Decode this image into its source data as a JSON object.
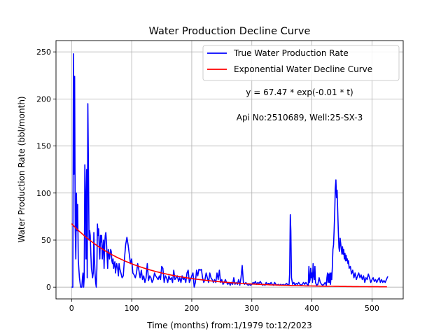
{
  "chart_data": {
    "type": "line",
    "title": "Water Production Decline Curve",
    "xlabel": "Time (months) from:1/1979 to:12/2023",
    "ylabel": "Water Production Rate (bbl/month)",
    "xlim": [
      -26,
      552
    ],
    "ylim": [
      -12.5,
      262
    ],
    "x_ticks": [
      0,
      100,
      200,
      300,
      400,
      500
    ],
    "y_ticks": [
      0,
      50,
      100,
      150,
      200,
      250
    ],
    "grid": true,
    "legend_position": "top-right",
    "annotations": [
      "y = 67.47 * exp(-0.01 * t)",
      "Api No:2510689, Well:25-SX-3"
    ],
    "series": [
      {
        "name": "True Water Production Rate",
        "color": "#0000ff",
        "points": [
          [
            0,
            0
          ],
          [
            2,
            0
          ],
          [
            3,
            248
          ],
          [
            4,
            120
          ],
          [
            5,
            224
          ],
          [
            6,
            60
          ],
          [
            7,
            30
          ],
          [
            8,
            100
          ],
          [
            9,
            60
          ],
          [
            10,
            88
          ],
          [
            11,
            30
          ],
          [
            12,
            20
          ],
          [
            13,
            10
          ],
          [
            14,
            5
          ],
          [
            15,
            0
          ],
          [
            17,
            0
          ],
          [
            18,
            10
          ],
          [
            19,
            15
          ],
          [
            20,
            0
          ],
          [
            21,
            10
          ],
          [
            22,
            130
          ],
          [
            23,
            100
          ],
          [
            24,
            30
          ],
          [
            25,
            125
          ],
          [
            26,
            10
          ],
          [
            27,
            195
          ],
          [
            28,
            130
          ],
          [
            29,
            50
          ],
          [
            30,
            60
          ],
          [
            31,
            55
          ],
          [
            32,
            35
          ],
          [
            33,
            20
          ],
          [
            34,
            15
          ],
          [
            35,
            10
          ],
          [
            36,
            15
          ],
          [
            37,
            58
          ],
          [
            38,
            30
          ],
          [
            39,
            15
          ],
          [
            40,
            5
          ],
          [
            41,
            0
          ],
          [
            42,
            20
          ],
          [
            43,
            67
          ],
          [
            44,
            55
          ],
          [
            45,
            62
          ],
          [
            46,
            40
          ],
          [
            47,
            30
          ],
          [
            48,
            55
          ],
          [
            49,
            48
          ],
          [
            50,
            55
          ],
          [
            51,
            30
          ],
          [
            52,
            40
          ],
          [
            53,
            50
          ],
          [
            54,
            20
          ],
          [
            55,
            45
          ],
          [
            56,
            55
          ],
          [
            57,
            58
          ],
          [
            58,
            48
          ],
          [
            59,
            35
          ],
          [
            60,
            20
          ],
          [
            61,
            40
          ],
          [
            62,
            37
          ],
          [
            63,
            30
          ],
          [
            64,
            35
          ],
          [
            65,
            40
          ],
          [
            66,
            38
          ],
          [
            67,
            28
          ],
          [
            68,
            25
          ],
          [
            69,
            30
          ],
          [
            70,
            20
          ],
          [
            71,
            24
          ],
          [
            72,
            27
          ],
          [
            73,
            15
          ],
          [
            74,
            20
          ],
          [
            75,
            25
          ],
          [
            76,
            22
          ],
          [
            77,
            18
          ],
          [
            78,
            12
          ],
          [
            79,
            25
          ],
          [
            80,
            20
          ],
          [
            82,
            15
          ],
          [
            84,
            10
          ],
          [
            86,
            12
          ],
          [
            88,
            30
          ],
          [
            90,
            45
          ],
          [
            92,
            53
          ],
          [
            94,
            45
          ],
          [
            96,
            35
          ],
          [
            98,
            25
          ],
          [
            100,
            30
          ],
          [
            102,
            15
          ],
          [
            104,
            13
          ],
          [
            106,
            10
          ],
          [
            108,
            15
          ],
          [
            110,
            25
          ],
          [
            112,
            18
          ],
          [
            114,
            10
          ],
          [
            116,
            18
          ],
          [
            118,
            8
          ],
          [
            120,
            12
          ],
          [
            122,
            5
          ],
          [
            124,
            10
          ],
          [
            126,
            25
          ],
          [
            128,
            7
          ],
          [
            130,
            12
          ],
          [
            132,
            10
          ],
          [
            134,
            5
          ],
          [
            136,
            8
          ],
          [
            138,
            15
          ],
          [
            140,
            12
          ],
          [
            142,
            10
          ],
          [
            144,
            8
          ],
          [
            146,
            12
          ],
          [
            148,
            8
          ],
          [
            150,
            22
          ],
          [
            152,
            20
          ],
          [
            154,
            5
          ],
          [
            156,
            12
          ],
          [
            158,
            10
          ],
          [
            160,
            5
          ],
          [
            162,
            12
          ],
          [
            164,
            8
          ],
          [
            166,
            10
          ],
          [
            168,
            5
          ],
          [
            170,
            18
          ],
          [
            172,
            8
          ],
          [
            174,
            10
          ],
          [
            176,
            12
          ],
          [
            178,
            6
          ],
          [
            180,
            10
          ],
          [
            182,
            5
          ],
          [
            184,
            12
          ],
          [
            186,
            8
          ],
          [
            188,
            10
          ],
          [
            190,
            5
          ],
          [
            192,
            15
          ],
          [
            194,
            18
          ],
          [
            196,
            5
          ],
          [
            198,
            8
          ],
          [
            200,
            12
          ],
          [
            202,
            15
          ],
          [
            204,
            0
          ],
          [
            206,
            5
          ],
          [
            208,
            18
          ],
          [
            210,
            12
          ],
          [
            212,
            19
          ],
          [
            214,
            18
          ],
          [
            216,
            19
          ],
          [
            218,
            10
          ],
          [
            220,
            5
          ],
          [
            222,
            8
          ],
          [
            224,
            15
          ],
          [
            226,
            10
          ],
          [
            228,
            5
          ],
          [
            230,
            15
          ],
          [
            232,
            10
          ],
          [
            234,
            8
          ],
          [
            236,
            5
          ],
          [
            238,
            8
          ],
          [
            240,
            5
          ],
          [
            242,
            15
          ],
          [
            244,
            8
          ],
          [
            246,
            18
          ],
          [
            248,
            5
          ],
          [
            250,
            8
          ],
          [
            252,
            3
          ],
          [
            254,
            5
          ],
          [
            256,
            8
          ],
          [
            258,
            5
          ],
          [
            260,
            3
          ],
          [
            262,
            5
          ],
          [
            264,
            2
          ],
          [
            266,
            5
          ],
          [
            268,
            3
          ],
          [
            270,
            10
          ],
          [
            272,
            3
          ],
          [
            274,
            5
          ],
          [
            276,
            3
          ],
          [
            278,
            8
          ],
          [
            280,
            2
          ],
          [
            282,
            10
          ],
          [
            284,
            23
          ],
          [
            286,
            5
          ],
          [
            288,
            3
          ],
          [
            290,
            5
          ],
          [
            292,
            3
          ],
          [
            294,
            2
          ],
          [
            296,
            3
          ],
          [
            298,
            2
          ],
          [
            300,
            3
          ],
          [
            302,
            5
          ],
          [
            304,
            4
          ],
          [
            306,
            6
          ],
          [
            308,
            3
          ],
          [
            310,
            5
          ],
          [
            312,
            4
          ],
          [
            314,
            6
          ],
          [
            316,
            4
          ],
          [
            318,
            2
          ],
          [
            320,
            3
          ],
          [
            322,
            2
          ],
          [
            324,
            5
          ],
          [
            326,
            3
          ],
          [
            328,
            4
          ],
          [
            330,
            3
          ],
          [
            332,
            5
          ],
          [
            334,
            3
          ],
          [
            336,
            2
          ],
          [
            338,
            5
          ],
          [
            340,
            3
          ],
          [
            342,
            2
          ],
          [
            344,
            3
          ],
          [
            346,
            2
          ],
          [
            348,
            3
          ],
          [
            350,
            2
          ],
          [
            352,
            3
          ],
          [
            354,
            2
          ],
          [
            356,
            3
          ],
          [
            358,
            4
          ],
          [
            360,
            2
          ],
          [
            362,
            3
          ],
          [
            363,
            15
          ],
          [
            364,
            77
          ],
          [
            365,
            60
          ],
          [
            366,
            10
          ],
          [
            368,
            3
          ],
          [
            370,
            5
          ],
          [
            372,
            2
          ],
          [
            374,
            4
          ],
          [
            376,
            3
          ],
          [
            378,
            5
          ],
          [
            380,
            3
          ],
          [
            382,
            2
          ],
          [
            384,
            3
          ],
          [
            386,
            5
          ],
          [
            388,
            3
          ],
          [
            390,
            5
          ],
          [
            392,
            3
          ],
          [
            394,
            2
          ],
          [
            395,
            22
          ],
          [
            396,
            5
          ],
          [
            397,
            8
          ],
          [
            398,
            20
          ],
          [
            399,
            10
          ],
          [
            400,
            15
          ],
          [
            401,
            5
          ],
          [
            402,
            25
          ],
          [
            403,
            12
          ],
          [
            404,
            8
          ],
          [
            405,
            22
          ],
          [
            406,
            5
          ],
          [
            408,
            2
          ],
          [
            410,
            3
          ],
          [
            412,
            10
          ],
          [
            414,
            5
          ],
          [
            416,
            3
          ],
          [
            418,
            2
          ],
          [
            420,
            3
          ],
          [
            422,
            5
          ],
          [
            424,
            2
          ],
          [
            425,
            10
          ],
          [
            426,
            15
          ],
          [
            427,
            5
          ],
          [
            428,
            14
          ],
          [
            429,
            5
          ],
          [
            430,
            15
          ],
          [
            431,
            3
          ],
          [
            432,
            15
          ],
          [
            433,
            8
          ],
          [
            434,
            20
          ],
          [
            435,
            40
          ],
          [
            436,
            45
          ],
          [
            437,
            60
          ],
          [
            438,
            80
          ],
          [
            439,
            105
          ],
          [
            440,
            114
          ],
          [
            441,
            95
          ],
          [
            442,
            103
          ],
          [
            443,
            80
          ],
          [
            444,
            60
          ],
          [
            445,
            42
          ],
          [
            446,
            38
          ],
          [
            447,
            52
          ],
          [
            448,
            46
          ],
          [
            449,
            40
          ],
          [
            450,
            35
          ],
          [
            451,
            43
          ],
          [
            452,
            35
          ],
          [
            453,
            40
          ],
          [
            454,
            30
          ],
          [
            455,
            36
          ],
          [
            456,
            28
          ],
          [
            457,
            34
          ],
          [
            458,
            28
          ],
          [
            459,
            30
          ],
          [
            460,
            25
          ],
          [
            461,
            28
          ],
          [
            462,
            20
          ],
          [
            464,
            22
          ],
          [
            466,
            14
          ],
          [
            468,
            18
          ],
          [
            470,
            10
          ],
          [
            472,
            15
          ],
          [
            474,
            8
          ],
          [
            476,
            12
          ],
          [
            478,
            15
          ],
          [
            480,
            10
          ],
          [
            482,
            13
          ],
          [
            484,
            8
          ],
          [
            486,
            12
          ],
          [
            488,
            5
          ],
          [
            490,
            10
          ],
          [
            492,
            8
          ],
          [
            494,
            14
          ],
          [
            496,
            10
          ],
          [
            498,
            5
          ],
          [
            500,
            8
          ],
          [
            502,
            10
          ],
          [
            504,
            6
          ],
          [
            506,
            8
          ],
          [
            508,
            5
          ],
          [
            510,
            8
          ],
          [
            512,
            10
          ],
          [
            514,
            5
          ],
          [
            516,
            8
          ],
          [
            518,
            5
          ],
          [
            520,
            7
          ],
          [
            522,
            5
          ],
          [
            524,
            8
          ],
          [
            526,
            11
          ],
          [
            527,
            11
          ]
        ]
      },
      {
        "name": "Exponential Water Decline Curve",
        "color": "#ff0000",
        "equation": {
          "a": 67.47,
          "b": -0.01
        },
        "x_range": [
          0,
          527
        ]
      }
    ]
  }
}
